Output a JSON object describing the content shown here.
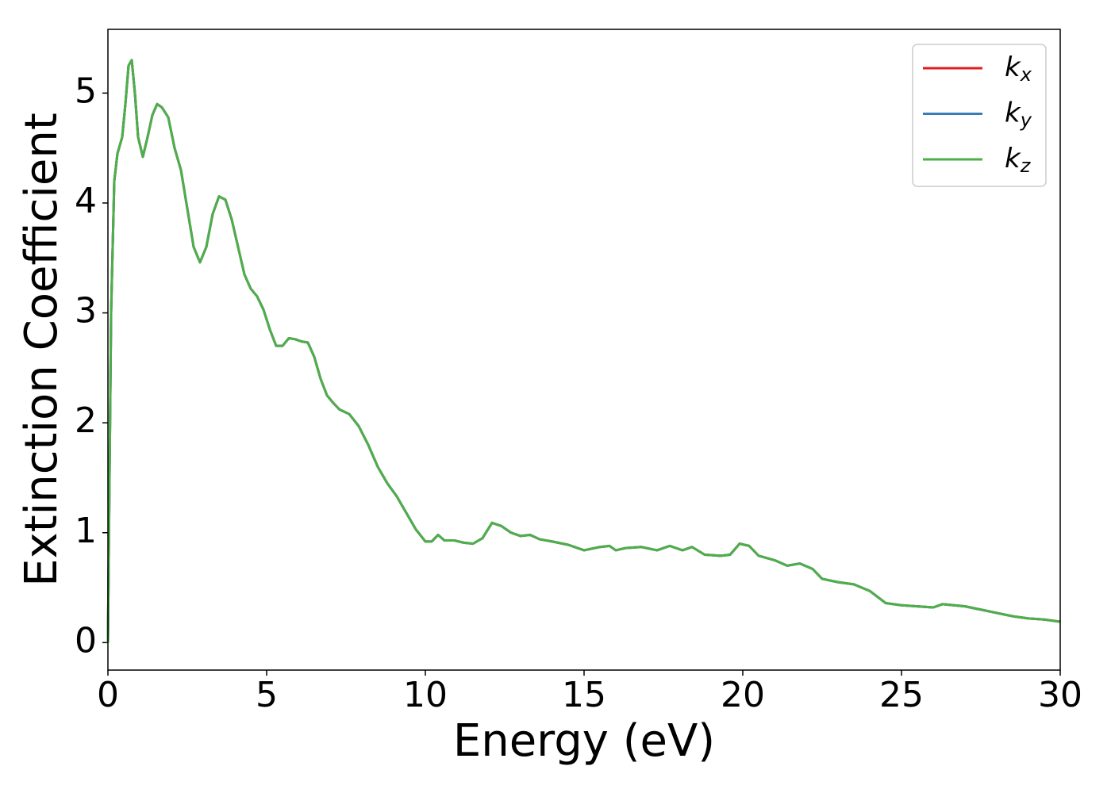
{
  "chart_data": {
    "type": "line",
    "xlabel": "Energy (eV)",
    "ylabel": "Extinction Coefficient",
    "x": [
      0,
      0.05,
      0.1,
      0.2,
      0.3,
      0.45,
      0.55,
      0.65,
      0.75,
      0.85,
      0.95,
      1.1,
      1.25,
      1.4,
      1.55,
      1.7,
      1.9,
      2.1,
      2.3,
      2.5,
      2.7,
      2.9,
      3.1,
      3.3,
      3.5,
      3.7,
      3.9,
      4.1,
      4.3,
      4.5,
      4.7,
      4.9,
      5.1,
      5.3,
      5.5,
      5.7,
      5.9,
      6.1,
      6.3,
      6.5,
      6.7,
      6.9,
      7.1,
      7.3,
      7.6,
      7.9,
      8.2,
      8.5,
      8.8,
      9.1,
      9.4,
      9.7,
      10.0,
      10.2,
      10.4,
      10.6,
      10.9,
      11.2,
      11.5,
      11.8,
      12.1,
      12.4,
      12.7,
      13.0,
      13.3,
      13.6,
      14.0,
      14.5,
      15.0,
      15.5,
      15.8,
      16.0,
      16.3,
      16.8,
      17.3,
      17.7,
      18.1,
      18.4,
      18.8,
      19.3,
      19.6,
      19.9,
      20.2,
      20.5,
      21.0,
      21.4,
      21.8,
      22.2,
      22.5,
      23.0,
      23.5,
      24.0,
      24.5,
      25.0,
      25.5,
      26.0,
      26.3,
      27.0,
      27.5,
      28.0,
      28.5,
      29.0,
      29.5,
      30.0
    ],
    "series": [
      {
        "name": "kx",
        "color": "#e41a1c",
        "values": [
          0,
          1.5,
          3.0,
          4.2,
          4.45,
          4.6,
          4.9,
          5.25,
          5.3,
          5.0,
          4.6,
          4.42,
          4.6,
          4.8,
          4.9,
          4.87,
          4.78,
          4.5,
          4.3,
          3.95,
          3.6,
          3.46,
          3.6,
          3.9,
          4.06,
          4.03,
          3.85,
          3.6,
          3.35,
          3.22,
          3.15,
          3.03,
          2.85,
          2.7,
          2.7,
          2.77,
          2.76,
          2.74,
          2.73,
          2.6,
          2.4,
          2.25,
          2.18,
          2.12,
          2.08,
          1.97,
          1.8,
          1.6,
          1.45,
          1.33,
          1.18,
          1.03,
          0.92,
          0.92,
          0.98,
          0.93,
          0.93,
          0.91,
          0.9,
          0.95,
          1.09,
          1.06,
          1.0,
          0.97,
          0.98,
          0.94,
          0.92,
          0.89,
          0.84,
          0.87,
          0.88,
          0.84,
          0.86,
          0.87,
          0.84,
          0.88,
          0.84,
          0.87,
          0.8,
          0.79,
          0.8,
          0.9,
          0.88,
          0.79,
          0.75,
          0.7,
          0.72,
          0.67,
          0.58,
          0.55,
          0.53,
          0.47,
          0.36,
          0.34,
          0.33,
          0.32,
          0.35,
          0.33,
          0.3,
          0.27,
          0.24,
          0.22,
          0.21,
          0.19
        ]
      },
      {
        "name": "ky",
        "color": "#377eb8",
        "values": [
          0,
          1.5,
          3.0,
          4.2,
          4.45,
          4.6,
          4.9,
          5.25,
          5.3,
          5.0,
          4.6,
          4.42,
          4.6,
          4.8,
          4.9,
          4.87,
          4.78,
          4.5,
          4.3,
          3.95,
          3.6,
          3.46,
          3.6,
          3.9,
          4.06,
          4.03,
          3.85,
          3.6,
          3.35,
          3.22,
          3.15,
          3.03,
          2.85,
          2.7,
          2.7,
          2.77,
          2.76,
          2.74,
          2.73,
          2.6,
          2.4,
          2.25,
          2.18,
          2.12,
          2.08,
          1.97,
          1.8,
          1.6,
          1.45,
          1.33,
          1.18,
          1.03,
          0.92,
          0.92,
          0.98,
          0.93,
          0.93,
          0.91,
          0.9,
          0.95,
          1.09,
          1.06,
          1.0,
          0.97,
          0.98,
          0.94,
          0.92,
          0.89,
          0.84,
          0.87,
          0.88,
          0.84,
          0.86,
          0.87,
          0.84,
          0.88,
          0.84,
          0.87,
          0.8,
          0.79,
          0.8,
          0.9,
          0.88,
          0.79,
          0.75,
          0.7,
          0.72,
          0.67,
          0.58,
          0.55,
          0.53,
          0.47,
          0.36,
          0.34,
          0.33,
          0.32,
          0.35,
          0.33,
          0.3,
          0.27,
          0.24,
          0.22,
          0.21,
          0.19
        ]
      },
      {
        "name": "kz",
        "color": "#4daf4a",
        "values": [
          0,
          1.5,
          3.0,
          4.2,
          4.45,
          4.6,
          4.9,
          5.25,
          5.3,
          5.0,
          4.6,
          4.42,
          4.6,
          4.8,
          4.9,
          4.87,
          4.78,
          4.5,
          4.3,
          3.95,
          3.6,
          3.46,
          3.6,
          3.9,
          4.06,
          4.03,
          3.85,
          3.6,
          3.35,
          3.22,
          3.15,
          3.03,
          2.85,
          2.7,
          2.7,
          2.77,
          2.76,
          2.74,
          2.73,
          2.6,
          2.4,
          2.25,
          2.18,
          2.12,
          2.08,
          1.97,
          1.8,
          1.6,
          1.45,
          1.33,
          1.18,
          1.03,
          0.92,
          0.92,
          0.98,
          0.93,
          0.93,
          0.91,
          0.9,
          0.95,
          1.09,
          1.06,
          1.0,
          0.97,
          0.98,
          0.94,
          0.92,
          0.89,
          0.84,
          0.87,
          0.88,
          0.84,
          0.86,
          0.87,
          0.84,
          0.88,
          0.84,
          0.87,
          0.8,
          0.79,
          0.8,
          0.9,
          0.88,
          0.79,
          0.75,
          0.7,
          0.72,
          0.67,
          0.58,
          0.55,
          0.53,
          0.47,
          0.36,
          0.34,
          0.33,
          0.32,
          0.35,
          0.33,
          0.3,
          0.27,
          0.24,
          0.22,
          0.21,
          0.19
        ]
      }
    ],
    "xlim": [
      0,
      30
    ],
    "xticks": [
      0,
      5,
      10,
      15,
      20,
      25,
      30
    ],
    "ylim": [
      -0.25,
      5.58
    ],
    "yticks": [
      0,
      1,
      2,
      3,
      4,
      5
    ],
    "legend": "upper right"
  }
}
